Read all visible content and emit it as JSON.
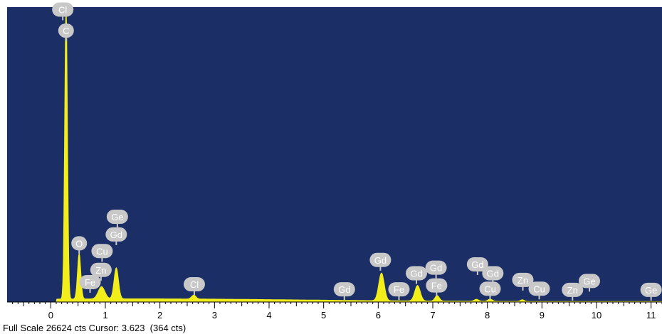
{
  "chart_data": {
    "type": "area",
    "title": "",
    "xlabel": "",
    "ylabel": "",
    "xlim": [
      -0.8,
      11.2
    ],
    "ylim": [
      0,
      26624
    ],
    "x_ticks": [
      "0",
      "1",
      "2",
      "3",
      "4",
      "5",
      "6",
      "7",
      "8",
      "9",
      "10",
      "11"
    ],
    "grid": false,
    "legend": "none",
    "colors": {
      "plot_background": "#1b2f66",
      "spectrum": "#f2ee1c",
      "label_bubble": "#c8c8c8",
      "label_text": "#ffffff"
    },
    "spectrum_peaks": [
      {
        "x": 0.28,
        "y": 26624,
        "width": 0.05
      },
      {
        "x": 0.52,
        "y": 4100,
        "width": 0.06
      },
      {
        "x": 0.93,
        "y": 1100,
        "width": 0.12
      },
      {
        "x": 1.2,
        "y": 2800,
        "width": 0.08
      },
      {
        "x": 2.62,
        "y": 350,
        "width": 0.08
      },
      {
        "x": 6.06,
        "y": 2500,
        "width": 0.1
      },
      {
        "x": 6.72,
        "y": 1400,
        "width": 0.1
      },
      {
        "x": 7.08,
        "y": 500,
        "width": 0.08
      },
      {
        "x": 7.8,
        "y": 180,
        "width": 0.08
      },
      {
        "x": 8.05,
        "y": 200,
        "width": 0.08
      },
      {
        "x": 8.64,
        "y": 150,
        "width": 0.07
      }
    ],
    "background_level": 250,
    "annotations": [
      {
        "text": "Cl",
        "x": 0.22,
        "y": 26400
      },
      {
        "text": "C",
        "x": 0.28,
        "y": 24500
      },
      {
        "text": "Ge",
        "x": 1.22,
        "y": 7700
      },
      {
        "text": "Gd",
        "x": 1.2,
        "y": 6100
      },
      {
        "text": "O",
        "x": 0.52,
        "y": 5300
      },
      {
        "text": "Cu",
        "x": 0.94,
        "y": 4600
      },
      {
        "text": "Zn",
        "x": 0.92,
        "y": 2900
      },
      {
        "text": "Fe",
        "x": 0.72,
        "y": 1800
      },
      {
        "text": "Cl",
        "x": 2.63,
        "y": 1600
      },
      {
        "text": "Gd",
        "x": 5.38,
        "y": 1150
      },
      {
        "text": "Gd",
        "x": 6.04,
        "y": 3800
      },
      {
        "text": "Fe",
        "x": 6.38,
        "y": 1150
      },
      {
        "text": "Gd",
        "x": 6.7,
        "y": 2600
      },
      {
        "text": "Fe",
        "x": 7.07,
        "y": 1500
      },
      {
        "text": "Gd",
        "x": 7.06,
        "y": 3100
      },
      {
        "text": "Gd",
        "x": 7.82,
        "y": 3400
      },
      {
        "text": "Gd",
        "x": 8.1,
        "y": 2600
      },
      {
        "text": "Cu",
        "x": 8.05,
        "y": 1200
      },
      {
        "text": "Zn",
        "x": 8.65,
        "y": 2000
      },
      {
        "text": "Cu",
        "x": 8.95,
        "y": 1200
      },
      {
        "text": "Ge",
        "x": 9.87,
        "y": 1900
      },
      {
        "text": "Zn",
        "x": 9.56,
        "y": 1100
      },
      {
        "text": "Ge",
        "x": 11.0,
        "y": 1100
      }
    ]
  },
  "status": {
    "text": "Full Scale 26624 cts Cursor: 3.623  (364 cts)"
  }
}
